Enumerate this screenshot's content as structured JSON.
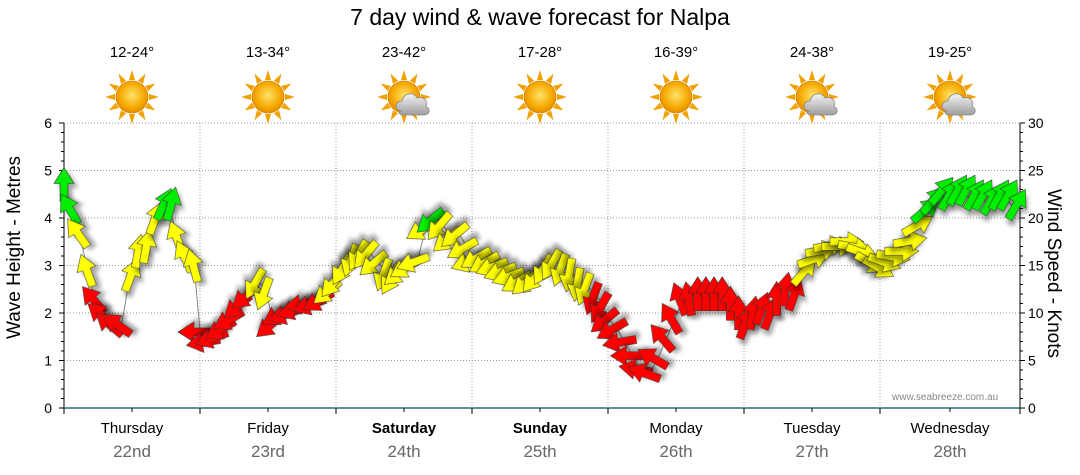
{
  "chart_data": {
    "type": "line",
    "title": "7 day wind & wave forecast for Nalpa",
    "ylabel_left": "Wave Height - Metres",
    "ylabel_right": "Wind Speed - Knots",
    "y_left_ticks": [
      "0",
      "1",
      "2",
      "3",
      "4",
      "5",
      "6"
    ],
    "y_right_ticks": [
      "0",
      "5",
      "10",
      "15",
      "20",
      "25",
      "30"
    ],
    "ylim_left": [
      0,
      6
    ],
    "ylim_right": [
      0,
      30
    ],
    "days": [
      {
        "name": "Thursday",
        "date": "22nd",
        "temp": "12-24°",
        "icon": "sun-icon",
        "bold": false
      },
      {
        "name": "Friday",
        "date": "23rd",
        "temp": "13-34°",
        "icon": "sun-icon",
        "bold": false
      },
      {
        "name": "Saturday",
        "date": "24th",
        "temp": "23-42°",
        "icon": "sun-cloud-icon",
        "bold": true
      },
      {
        "name": "Sunday",
        "date": "25th",
        "temp": "17-28°",
        "icon": "sun-icon",
        "bold": true
      },
      {
        "name": "Monday",
        "date": "26th",
        "temp": "16-39°",
        "icon": "sun-icon",
        "bold": false
      },
      {
        "name": "Tuesday",
        "date": "27th",
        "temp": "24-38°",
        "icon": "sun-cloud-icon",
        "bold": false
      },
      {
        "name": "Wednesday",
        "date": "28th",
        "temp": "19-25°",
        "icon": "sun-cloud-icon",
        "bold": false
      }
    ],
    "series": [
      {
        "name": "Wind Speed - Knots",
        "colors": {
          "light": "#ff0000",
          "moderate": "#ffff00",
          "strong": "#00ee00"
        },
        "points": [
          {
            "t": 0.0,
            "v": 23.0,
            "dir": 0
          },
          {
            "t": 0.06,
            "v": 20.5,
            "dir": -30
          },
          {
            "t": 0.12,
            "v": 18.0,
            "dir": -35
          },
          {
            "t": 0.18,
            "v": 14.0,
            "dir": -20
          },
          {
            "t": 0.24,
            "v": 11.0,
            "dir": -40
          },
          {
            "t": 0.3,
            "v": 9.5,
            "dir": -50
          },
          {
            "t": 0.36,
            "v": 8.5,
            "dir": -50
          },
          {
            "t": 0.42,
            "v": 8.5,
            "dir": -55
          },
          {
            "t": 0.48,
            "v": 13.5,
            "dir": 20
          },
          {
            "t": 0.54,
            "v": 16.0,
            "dir": 10
          },
          {
            "t": 0.6,
            "v": 16.5,
            "dir": 10
          },
          {
            "t": 0.66,
            "v": 19.5,
            "dir": 20
          },
          {
            "t": 0.72,
            "v": 21.0,
            "dir": 25
          },
          {
            "t": 0.78,
            "v": 21.0,
            "dir": 15
          },
          {
            "t": 0.84,
            "v": 17.5,
            "dir": -20
          },
          {
            "t": 0.9,
            "v": 15.5,
            "dir": -25
          },
          {
            "t": 0.96,
            "v": 14.5,
            "dir": -15
          },
          {
            "t": 1.0,
            "v": 8.0,
            "dir": -90
          },
          {
            "t": 1.06,
            "v": 7.0,
            "dir": -100
          },
          {
            "t": 1.12,
            "v": 7.5,
            "dir": -110
          },
          {
            "t": 1.18,
            "v": 8.5,
            "dir": -120
          },
          {
            "t": 1.24,
            "v": 9.5,
            "dir": -120
          },
          {
            "t": 1.3,
            "v": 11.0,
            "dir": -130
          },
          {
            "t": 1.36,
            "v": 12.0,
            "dir": -130
          },
          {
            "t": 1.42,
            "v": 13.5,
            "dir": -150
          },
          {
            "t": 1.48,
            "v": 12.5,
            "dir": -160
          },
          {
            "t": 1.54,
            "v": 9.0,
            "dir": -130
          },
          {
            "t": 1.6,
            "v": 10.0,
            "dir": -120
          },
          {
            "t": 1.66,
            "v": 10.0,
            "dir": -110
          },
          {
            "t": 1.72,
            "v": 10.5,
            "dir": -110
          },
          {
            "t": 1.78,
            "v": 11.0,
            "dir": -100
          },
          {
            "t": 1.84,
            "v": 11.0,
            "dir": -110
          },
          {
            "t": 1.9,
            "v": 11.5,
            "dir": -120
          },
          {
            "t": 1.96,
            "v": 12.5,
            "dir": -130
          },
          {
            "t": 2.0,
            "v": 13.5,
            "dir": -140
          },
          {
            "t": 2.06,
            "v": 15.0,
            "dir": -150
          },
          {
            "t": 2.12,
            "v": 16.0,
            "dir": -160
          },
          {
            "t": 2.18,
            "v": 16.5,
            "dir": -150
          },
          {
            "t": 2.24,
            "v": 16.5,
            "dir": -140
          },
          {
            "t": 2.3,
            "v": 15.5,
            "dir": -130
          },
          {
            "t": 2.36,
            "v": 14.5,
            "dir": -160
          },
          {
            "t": 2.42,
            "v": 14.0,
            "dir": -150
          },
          {
            "t": 2.48,
            "v": 14.5,
            "dir": -130
          },
          {
            "t": 2.54,
            "v": 15.0,
            "dir": -120
          },
          {
            "t": 2.6,
            "v": 15.5,
            "dir": -110
          },
          {
            "t": 2.66,
            "v": 19.0,
            "dir": -120
          },
          {
            "t": 2.72,
            "v": 20.0,
            "dir": -130
          },
          {
            "t": 2.78,
            "v": 19.5,
            "dir": -140
          },
          {
            "t": 2.84,
            "v": 18.0,
            "dir": -130
          },
          {
            "t": 2.9,
            "v": 18.5,
            "dir": -130
          },
          {
            "t": 2.96,
            "v": 17.0,
            "dir": -120
          },
          {
            "t": 3.0,
            "v": 15.5,
            "dir": -110
          },
          {
            "t": 3.06,
            "v": 16.0,
            "dir": -120
          },
          {
            "t": 3.12,
            "v": 15.5,
            "dir": -120
          },
          {
            "t": 3.18,
            "v": 15.0,
            "dir": -110
          },
          {
            "t": 3.24,
            "v": 14.5,
            "dir": -110
          },
          {
            "t": 3.3,
            "v": 14.0,
            "dir": -110
          },
          {
            "t": 3.36,
            "v": 13.5,
            "dir": -120
          },
          {
            "t": 3.42,
            "v": 13.5,
            "dir": -130
          },
          {
            "t": 3.48,
            "v": 14.0,
            "dir": -140
          },
          {
            "t": 3.54,
            "v": 15.0,
            "dir": -150
          },
          {
            "t": 3.6,
            "v": 15.5,
            "dir": -150
          },
          {
            "t": 3.66,
            "v": 15.0,
            "dir": -160
          },
          {
            "t": 3.72,
            "v": 14.5,
            "dir": -170
          },
          {
            "t": 3.78,
            "v": 13.5,
            "dir": -170
          },
          {
            "t": 3.84,
            "v": 13.0,
            "dir": -160
          },
          {
            "t": 3.9,
            "v": 12.0,
            "dir": -160
          },
          {
            "t": 3.96,
            "v": 11.0,
            "dir": -150
          },
          {
            "t": 4.0,
            "v": 9.5,
            "dir": -130
          },
          {
            "t": 4.06,
            "v": 8.5,
            "dir": -120
          },
          {
            "t": 4.12,
            "v": 7.0,
            "dir": -100
          },
          {
            "t": 4.18,
            "v": 5.5,
            "dir": -90
          },
          {
            "t": 4.24,
            "v": 4.0,
            "dir": -80
          },
          {
            "t": 4.3,
            "v": 3.5,
            "dir": -70
          },
          {
            "t": 4.36,
            "v": 5.0,
            "dir": -60
          },
          {
            "t": 4.42,
            "v": 7.0,
            "dir": -40
          },
          {
            "t": 4.48,
            "v": 9.0,
            "dir": -30
          },
          {
            "t": 4.54,
            "v": 11.0,
            "dir": -20
          },
          {
            "t": 4.6,
            "v": 11.0,
            "dir": -10
          },
          {
            "t": 4.66,
            "v": 11.5,
            "dir": 0
          },
          {
            "t": 4.72,
            "v": 11.5,
            "dir": 0
          },
          {
            "t": 4.78,
            "v": 11.5,
            "dir": 0
          },
          {
            "t": 4.84,
            "v": 11.5,
            "dir": 0
          },
          {
            "t": 4.9,
            "v": 10.5,
            "dir": 0
          },
          {
            "t": 4.96,
            "v": 9.5,
            "dir": 0
          },
          {
            "t": 5.0,
            "v": 8.5,
            "dir": 20
          },
          {
            "t": 5.06,
            "v": 9.5,
            "dir": 10
          },
          {
            "t": 5.12,
            "v": 10.0,
            "dir": 20
          },
          {
            "t": 5.18,
            "v": 9.5,
            "dir": 20
          },
          {
            "t": 5.24,
            "v": 11.0,
            "dir": 0
          },
          {
            "t": 5.3,
            "v": 12.0,
            "dir": 10
          },
          {
            "t": 5.36,
            "v": 11.5,
            "dir": 20
          },
          {
            "t": 5.42,
            "v": 14.0,
            "dir": 40
          },
          {
            "t": 5.48,
            "v": 15.5,
            "dir": 70
          },
          {
            "t": 5.54,
            "v": 16.5,
            "dir": 80
          },
          {
            "t": 5.6,
            "v": 17.0,
            "dir": 80
          },
          {
            "t": 5.66,
            "v": 17.0,
            "dir": 90
          },
          {
            "t": 5.72,
            "v": 17.5,
            "dir": 90
          },
          {
            "t": 5.78,
            "v": 17.0,
            "dir": 100
          },
          {
            "t": 5.84,
            "v": 16.5,
            "dir": 110
          },
          {
            "t": 5.9,
            "v": 15.5,
            "dir": 120
          },
          {
            "t": 5.96,
            "v": 15.0,
            "dir": 120
          },
          {
            "t": 6.0,
            "v": 15.5,
            "dir": 110
          },
          {
            "t": 6.06,
            "v": 16.0,
            "dir": 100
          },
          {
            "t": 6.12,
            "v": 16.5,
            "dir": 90
          },
          {
            "t": 6.18,
            "v": 17.5,
            "dir": 80
          },
          {
            "t": 6.24,
            "v": 19.0,
            "dir": 60
          },
          {
            "t": 6.3,
            "v": 20.5,
            "dir": 50
          },
          {
            "t": 6.36,
            "v": 21.5,
            "dir": 40
          },
          {
            "t": 6.42,
            "v": 22.5,
            "dir": 40
          },
          {
            "t": 6.48,
            "v": 22.0,
            "dir": 30
          },
          {
            "t": 6.54,
            "v": 22.5,
            "dir": 30
          },
          {
            "t": 6.6,
            "v": 22.5,
            "dir": 30
          },
          {
            "t": 6.66,
            "v": 22.0,
            "dir": 30
          },
          {
            "t": 6.72,
            "v": 22.0,
            "dir": 30
          },
          {
            "t": 6.78,
            "v": 21.5,
            "dir": 30
          },
          {
            "t": 6.84,
            "v": 22.0,
            "dir": 30
          },
          {
            "t": 6.9,
            "v": 22.0,
            "dir": 30
          },
          {
            "t": 6.96,
            "v": 21.0,
            "dir": 30
          }
        ]
      }
    ],
    "grid": true
  },
  "watermark": "www.seabreeze.com.au"
}
